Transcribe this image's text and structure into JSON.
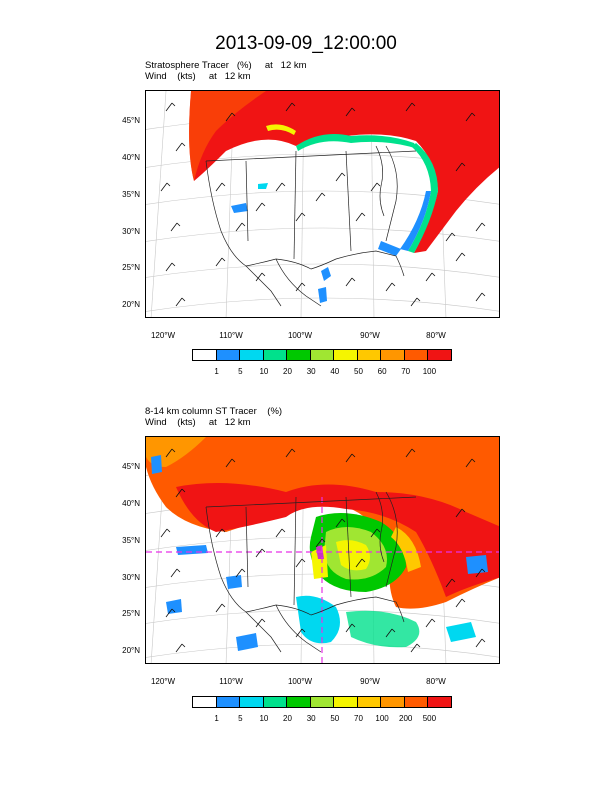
{
  "title": "2013-09-09_12:00:00",
  "panels": [
    {
      "subtitle_line1": "Stratosphere Tracer   (%)     at   12 km",
      "subtitle_line2": "Wind    (kts)     at   12 km",
      "lat_labels": [
        "45°N",
        "40°N",
        "35°N",
        "30°N",
        "25°N",
        "20°N"
      ],
      "lon_labels": [
        "120°W",
        "110°W",
        "100°W",
        "90°W",
        "80°W"
      ],
      "colorbar_labels": [
        "1",
        "5",
        "10",
        "20",
        "30",
        "40",
        "50",
        "60",
        "70",
        "100"
      ]
    },
    {
      "subtitle_line1": "8-14 km column ST Tracer    (%)",
      "subtitle_line2": "Wind    (kts)     at   12 km",
      "lat_labels": [
        "45°N",
        "40°N",
        "35°N",
        "30°N",
        "25°N",
        "20°N"
      ],
      "lon_labels": [
        "120°W",
        "110°W",
        "100°W",
        "90°W",
        "80°W"
      ],
      "colorbar_labels": [
        "1",
        "5",
        "10",
        "20",
        "30",
        "50",
        "70",
        "100",
        "200",
        "500"
      ]
    }
  ],
  "colorbar_colors": [
    "#ffffff",
    "#1e90ff",
    "#00d8f0",
    "#00e18c",
    "#00c800",
    "#a0e632",
    "#f5f500",
    "#ffc800",
    "#ff9600",
    "#ff5a00",
    "#f01414"
  ]
}
